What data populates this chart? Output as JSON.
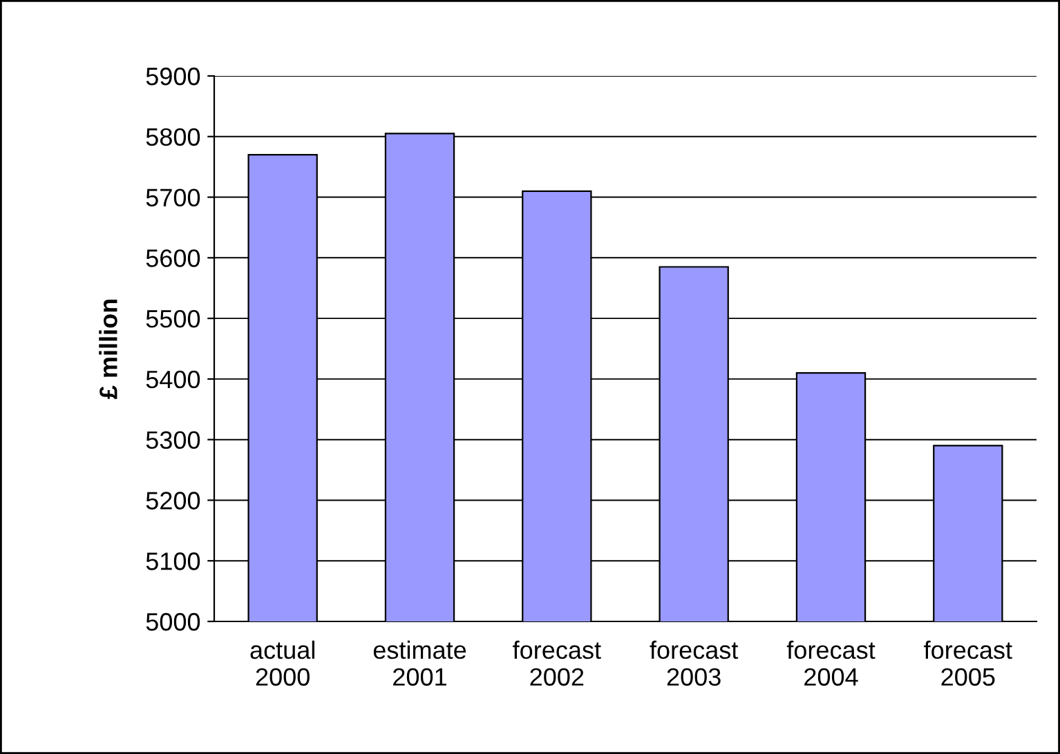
{
  "chart_data": {
    "type": "bar",
    "ylabel": "£ million",
    "categories": [
      "actual\n2000",
      "estimate\n2001",
      "forecast\n2002",
      "forecast\n2003",
      "forecast\n2004",
      "forecast\n2005"
    ],
    "values": [
      5770,
      5805,
      5710,
      5585,
      5410,
      5290
    ],
    "color": "#9999ff",
    "ylim": [
      5000,
      5900
    ],
    "yticks": [
      5000,
      5100,
      5200,
      5300,
      5400,
      5500,
      5600,
      5700,
      5800,
      5900
    ],
    "grid": "y",
    "legend": false
  }
}
